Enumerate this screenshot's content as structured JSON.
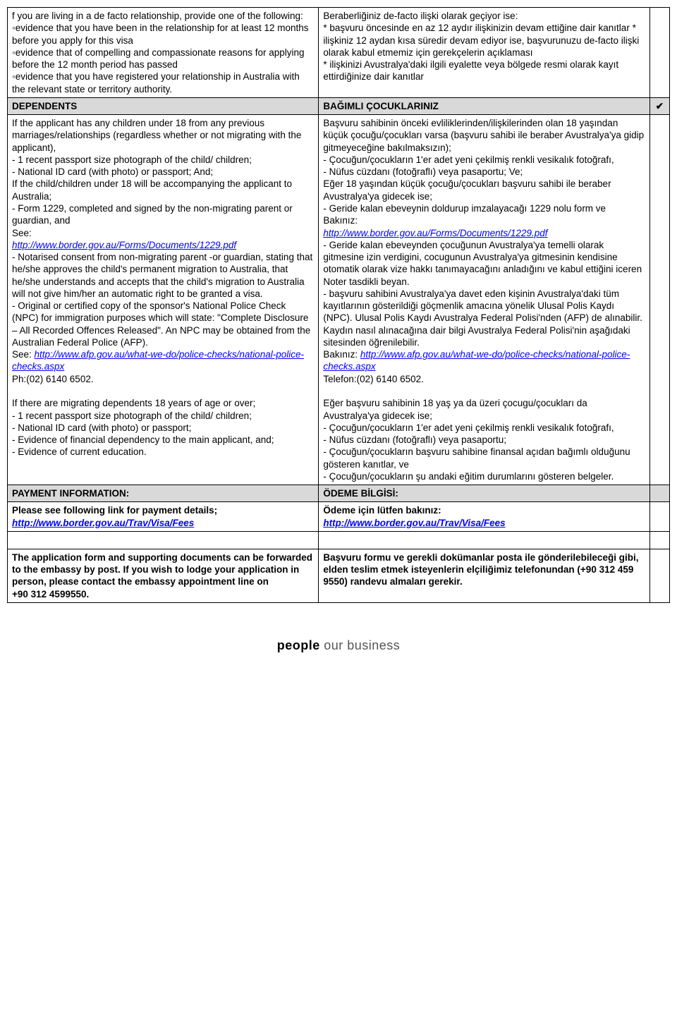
{
  "colors": {
    "border": "#000000",
    "header_bg": "#d9d9d9",
    "link": "#0000ff",
    "background": "#ffffff"
  },
  "rows": {
    "defacto": {
      "en": "f you are living in a de facto relationship, provide one of the following: ◦evidence that you have been in the relationship for at least 12 months before you apply for this visa\n◦evidence that of compelling and compassionate reasons for applying before the 12 month period has passed\n◦evidence that you have registered your relationship in Australia with the relevant state or territory authority.",
      "tr": "Beraberliğiniz de-facto ilişki olarak geçiyor ise:\n* başvuru öncesinde en az 12 aydır ilişkinizin devam ettiğine dair kanıtlar                                                                          *\nilişkiniz 12 aydan kısa süredir devam ediyor ise, başvurunuzu de-facto ilişki olarak kabul etmemiz için gerekçelerin açıklaması\n* ilişkinizi Avustralya'daki ilgili eyalette veya bölgede resmi olarak kayıt ettirdiğinize dair kanıtlar"
    },
    "dependents_header": {
      "en": "DEPENDENTS",
      "tr": "BAĞIMLI ÇOCUKLARINIZ"
    },
    "dependents_en_1": "If the applicant has any children under 18 from any previous marriages/relationships (regardless whether or not migrating with the applicant),\n- 1 recent passport size photograph of the child/ children;\n- National ID card (with photo) or passport; And;\nIf the child/children under 18 will be accompanying the applicant to Australia;\n- Form 1229, completed and signed by the non-migrating parent or guardian, and\nSee:",
    "dependents_en_link1": "http://www.border.gov.au/Forms/Documents/1229.pdf",
    "dependents_en_2": "- Notarised consent from non-migrating parent -or guardian, stating that he/she approves the child's permanent migration to Australia, that he/she understands and accepts that the child's migration to Australia will not give him/her an automatic right to be granted a visa.\n- Original or certified copy of the sponsor's National Police Check (NPC) for immigration purposes which will state: \"Complete Disclosure – All Recorded Offences Released\". An NPC may be obtained from the Australian Federal Police (AFP).\nSee: ",
    "dependents_en_link2": "http://www.afp.gov.au/what-we-do/police-checks/national-police-checks.aspx",
    "dependents_en_3": "\nPh:(02) 6140 6502.\n\nIf there are migrating dependents 18 years of age or over;\n- 1 recent passport size photograph of the child/ children;\n- National ID card (with photo) or passport;\n- Evidence of financial dependency to the main applicant, and;\n- Evidence of current education.",
    "dependents_tr_1": "Başvuru sahibinin önceki evliliklerinden/ilişkilerinden olan 18 yaşından küçük çocuğu/çocukları varsa (başvuru sahibi ile beraber Avustralya'ya gidip gitmeyeceğine bakılmaksızın);\n- Çocuğun/çocukların 1'er adet yeni çekilmiş renkli vesikalık fotoğrafı,\n- Nüfus cüzdanı (fotoğraflı) veya pasaportu;  Ve;\nEğer 18 yaşından küçük çocuğu/çocukları başvuru sahibi ile beraber Avustralya'ya gidecek ise;\n- Geride kalan ebeveynin doldurup imzalayacağı 1229 nolu form ve\nBakınız:",
    "dependents_tr_link1": "http://www.border.gov.au/Forms/Documents/1229.pdf",
    "dependents_tr_2": "- Geride kalan ebeveynden çocuğunun Avustralya'ya temelli olarak gitmesine izin verdigini, cocugunun Avustralya'ya gitmesinin kendisine otomatik olarak vize hakkı tanımayacağını anladığını ve kabul ettiğini iceren Noter tasdikli beyan.\n- başvuru sahibini Avustralya'ya davet eden kişinin Avustralya'daki tüm kayıtlarının gösterildiği göçmenlik amacına yönelik Ulusal Polis Kaydı (NPC). Ulusal Polis Kaydı Avustralya Federal Polisi'nden (AFP) de alınabilir. Kaydın nasıl alınacağına dair bilgi Avustralya Federal Polisi'nin aşağıdaki sitesinden öğrenilebilir.\nBakınız: ",
    "dependents_tr_link2": "http://www.afp.gov.au/what-we-do/police-checks/national-police-checks.aspx",
    "dependents_tr_3": "\nTelefon:(02) 6140 6502.\n\nEğer başvuru sahibinin 18 yaş ya da üzeri çocugu/çocukları da Avustralya'ya gidecek ise;\n- Çocuğun/çocukların 1'er adet yeni çekilmiş renkli vesikalık fotoğrafı,\n- Nüfus cüzdanı (fotoğraflı) veya pasaportu;\n- Çocuğun/çocukların başvuru sahibine finansal açıdan bağımlı olduğunu gösteren kanıtlar, ve\n- Çocuğun/çocukların şu andaki eğitim durumlarını gösteren belgeler.",
    "payment_header": {
      "en": "PAYMENT INFORMATION:",
      "tr": "ÖDEME BİLGİSİ:"
    },
    "payment_en": "Please see following link for payment details;",
    "payment_tr": "Ödeme için lütfen bakınız:",
    "payment_link": "http://www.border.gov.au/Trav/Visa/Fees",
    "post_en": "The application form and supporting documents can be forwarded to the embassy by post.  If you wish to lodge your application in person, please contact the embassy appointment line on\n+90 312 4599550.",
    "post_tr": "Başvuru formu ve gerekli dokümanlar posta ile gönderilebileceği gibi, elden teslim etmek isteyenlerin elçiliğimiz telefonundan (+90 312 459 9550) randevu almaları gerekir.",
    "check": "✔"
  },
  "footer": {
    "people": "people",
    "our": " our business"
  }
}
